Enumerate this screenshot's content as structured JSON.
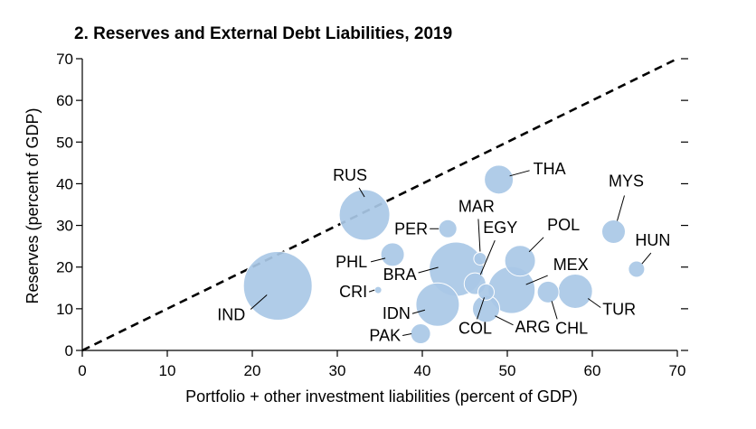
{
  "chart_data": {
    "type": "scatter",
    "bubble": true,
    "title": "2. Reserves and External Debt Liabilities, 2019",
    "xlabel": "Portfolio + other investment liabilities (percent of GDP)",
    "ylabel": "Reserves (percent of GDP)",
    "xlim": [
      0,
      70
    ],
    "ylim": [
      0,
      70
    ],
    "xticks": [
      0,
      10,
      20,
      30,
      40,
      50,
      60,
      70
    ],
    "yticks": [
      0,
      10,
      20,
      30,
      40,
      50,
      60,
      70
    ],
    "reference_line": {
      "style": "dashed",
      "from": [
        0,
        0
      ],
      "to": [
        70,
        70
      ]
    },
    "grid": false,
    "bubble_color": "#a9c8e6",
    "points": [
      {
        "label": "IND",
        "x": 23.0,
        "y": 15.5,
        "size": 38
      },
      {
        "label": "RUS",
        "x": 33.2,
        "y": 32.5,
        "size": 28
      },
      {
        "label": "PER",
        "x": 43.0,
        "y": 29.2,
        "size": 10
      },
      {
        "label": "PHL",
        "x": 36.5,
        "y": 23.0,
        "size": 13
      },
      {
        "label": "CRI",
        "x": 34.8,
        "y": 14.5,
        "size": 4
      },
      {
        "label": "BRA",
        "x": 44.0,
        "y": 19.5,
        "size": 30
      },
      {
        "label": "IDN",
        "x": 41.8,
        "y": 11.0,
        "size": 24
      },
      {
        "label": "PAK",
        "x": 39.8,
        "y": 4.0,
        "size": 11
      },
      {
        "label": "MAR",
        "x": 46.8,
        "y": 22.0,
        "size": 7
      },
      {
        "label": "EGY",
        "x": 46.2,
        "y": 16.0,
        "size": 12
      },
      {
        "label": "COL",
        "x": 47.5,
        "y": 14.0,
        "size": 9
      },
      {
        "label": "ARG",
        "x": 47.5,
        "y": 10.0,
        "size": 15
      },
      {
        "label": "THA",
        "x": 49.0,
        "y": 41.0,
        "size": 16
      },
      {
        "label": "POL",
        "x": 51.5,
        "y": 21.5,
        "size": 17
      },
      {
        "label": "MEX",
        "x": 50.5,
        "y": 14.5,
        "size": 26
      },
      {
        "label": "CHL",
        "x": 54.8,
        "y": 14.0,
        "size": 12
      },
      {
        "label": "TUR",
        "x": 58.0,
        "y": 14.2,
        "size": 19
      },
      {
        "label": "MYS",
        "x": 62.5,
        "y": 28.5,
        "size": 13
      },
      {
        "label": "HUN",
        "x": 65.2,
        "y": 19.5,
        "size": 9
      }
    ]
  }
}
